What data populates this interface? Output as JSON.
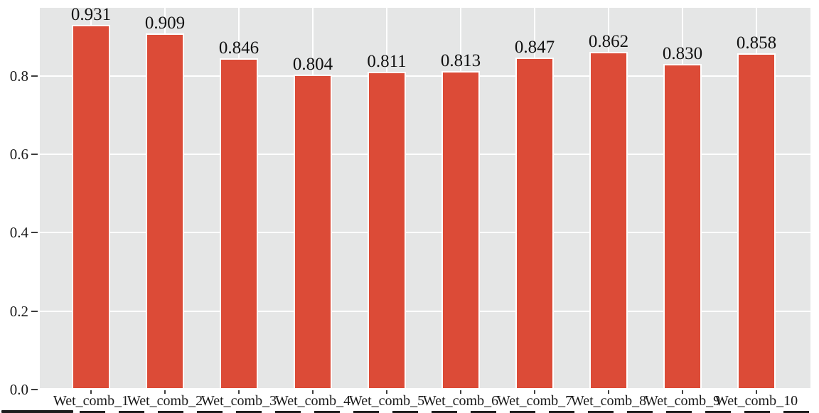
{
  "chart_data": {
    "type": "bar",
    "title": "",
    "xlabel": "",
    "ylabel": "",
    "categories": [
      "Wet_comb_1",
      "Wet_comb_2",
      "Wet_comb_3",
      "Wet_comb_4",
      "Wet_comb_5",
      "Wet_comb_6",
      "Wet_comb_7",
      "Wet_comb_8",
      "Wet_comb_9",
      "Wet_comb_10"
    ],
    "values": [
      0.931,
      0.909,
      0.846,
      0.804,
      0.811,
      0.813,
      0.847,
      0.862,
      0.83,
      0.858
    ],
    "value_labels": [
      "0.931",
      "0.909",
      "0.846",
      "0.804",
      "0.811",
      "0.813",
      "0.847",
      "0.862",
      "0.830",
      "0.858"
    ],
    "yticks": [
      "0.0",
      "0.2",
      "0.4",
      "0.6",
      "0.8"
    ],
    "ytick_values": [
      0.0,
      0.2,
      0.4,
      0.6,
      0.8
    ],
    "ylim": [
      0,
      0.974
    ],
    "grid": "on",
    "legend": "none",
    "style": {
      "bar_color": "#dc4b37",
      "bar_edge_color": "#ffffff",
      "plot_background": "#e5e6e6",
      "grid_color": "#ffffff",
      "tick_color": "#3d3d3d",
      "text_color": "#1a1a1a",
      "figure_background": "#ffffff"
    }
  }
}
